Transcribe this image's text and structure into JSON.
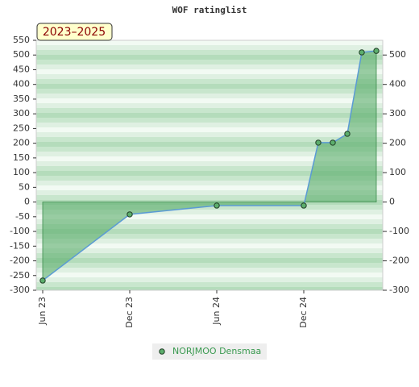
{
  "chart_data": {
    "type": "area-line",
    "title": "WOF ratinglist",
    "badge": "2023–2025",
    "x": [
      "2023-06",
      "2023-12",
      "2024-06",
      "2024-12",
      "2025-01",
      "2025-02",
      "2025-03",
      "2025-04",
      "2025-05"
    ],
    "xticks": [
      {
        "value": "2023-06",
        "label": "Jun 23"
      },
      {
        "value": "2023-12",
        "label": "Dec 23"
      },
      {
        "value": "2024-06",
        "label": "Jun 24"
      },
      {
        "value": "2024-12",
        "label": "Dec 24"
      }
    ],
    "series": [
      {
        "name": "NORJMOO Densmaa",
        "color": "#5cae6c",
        "line_color": "#5b9bd5",
        "values": [
          -267,
          -42,
          -12,
          -12,
          202,
          202,
          232,
          509,
          514
        ]
      }
    ],
    "ylim": [
      -300,
      550
    ],
    "yticks": [
      -300,
      -250,
      -200,
      -150,
      -100,
      -50,
      0,
      50,
      100,
      150,
      200,
      250,
      300,
      350,
      400,
      450,
      500,
      550
    ],
    "y2lim": [
      -300,
      550
    ],
    "y2ticks": [
      -300,
      -200,
      -100,
      0,
      100,
      200,
      300,
      400,
      500
    ]
  }
}
